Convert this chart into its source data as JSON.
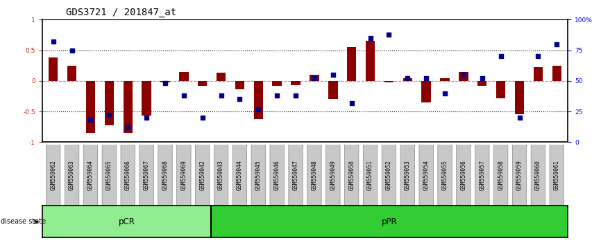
{
  "title": "GDS3721 / 201847_at",
  "samples": [
    "GSM559062",
    "GSM559063",
    "GSM559064",
    "GSM559065",
    "GSM559066",
    "GSM559067",
    "GSM559068",
    "GSM559069",
    "GSM559042",
    "GSM559043",
    "GSM559044",
    "GSM559045",
    "GSM559046",
    "GSM559047",
    "GSM559048",
    "GSM559049",
    "GSM559050",
    "GSM559051",
    "GSM559052",
    "GSM559053",
    "GSM559054",
    "GSM559055",
    "GSM559056",
    "GSM559057",
    "GSM559058",
    "GSM559059",
    "GSM559060",
    "GSM559061"
  ],
  "transformed_count": [
    0.38,
    0.25,
    -0.85,
    -0.72,
    -0.85,
    -0.57,
    -0.03,
    0.15,
    -0.08,
    0.13,
    -0.14,
    -0.62,
    -0.08,
    -0.07,
    0.1,
    -0.3,
    0.55,
    0.65,
    -0.03,
    0.04,
    -0.35,
    0.04,
    0.15,
    -0.08,
    -0.28,
    -0.55,
    0.22,
    0.25
  ],
  "percentile_rank": [
    82,
    75,
    18,
    22,
    12,
    20,
    48,
    38,
    20,
    38,
    35,
    27,
    38,
    38,
    52,
    55,
    32,
    85,
    88,
    52,
    52,
    40,
    55,
    52,
    70,
    20,
    70,
    80
  ],
  "pCR_count": 9,
  "pPR_count": 19,
  "bar_color": "#8B0000",
  "dot_color": "#00008B",
  "pCR_color": "#90EE90",
  "pPR_color": "#32CD32",
  "ylim": [
    -1,
    1
  ],
  "y2lim": [
    0,
    100
  ],
  "yticks": [
    -1,
    -0.5,
    0,
    0.5,
    1
  ],
  "y2ticks": [
    0,
    25,
    50,
    75,
    100
  ],
  "dotted_lines": [
    0.5,
    -0.5
  ],
  "zero_line_color": "#FF6666",
  "title_fontsize": 10,
  "tick_fontsize": 6.5,
  "label_fontsize": 8
}
